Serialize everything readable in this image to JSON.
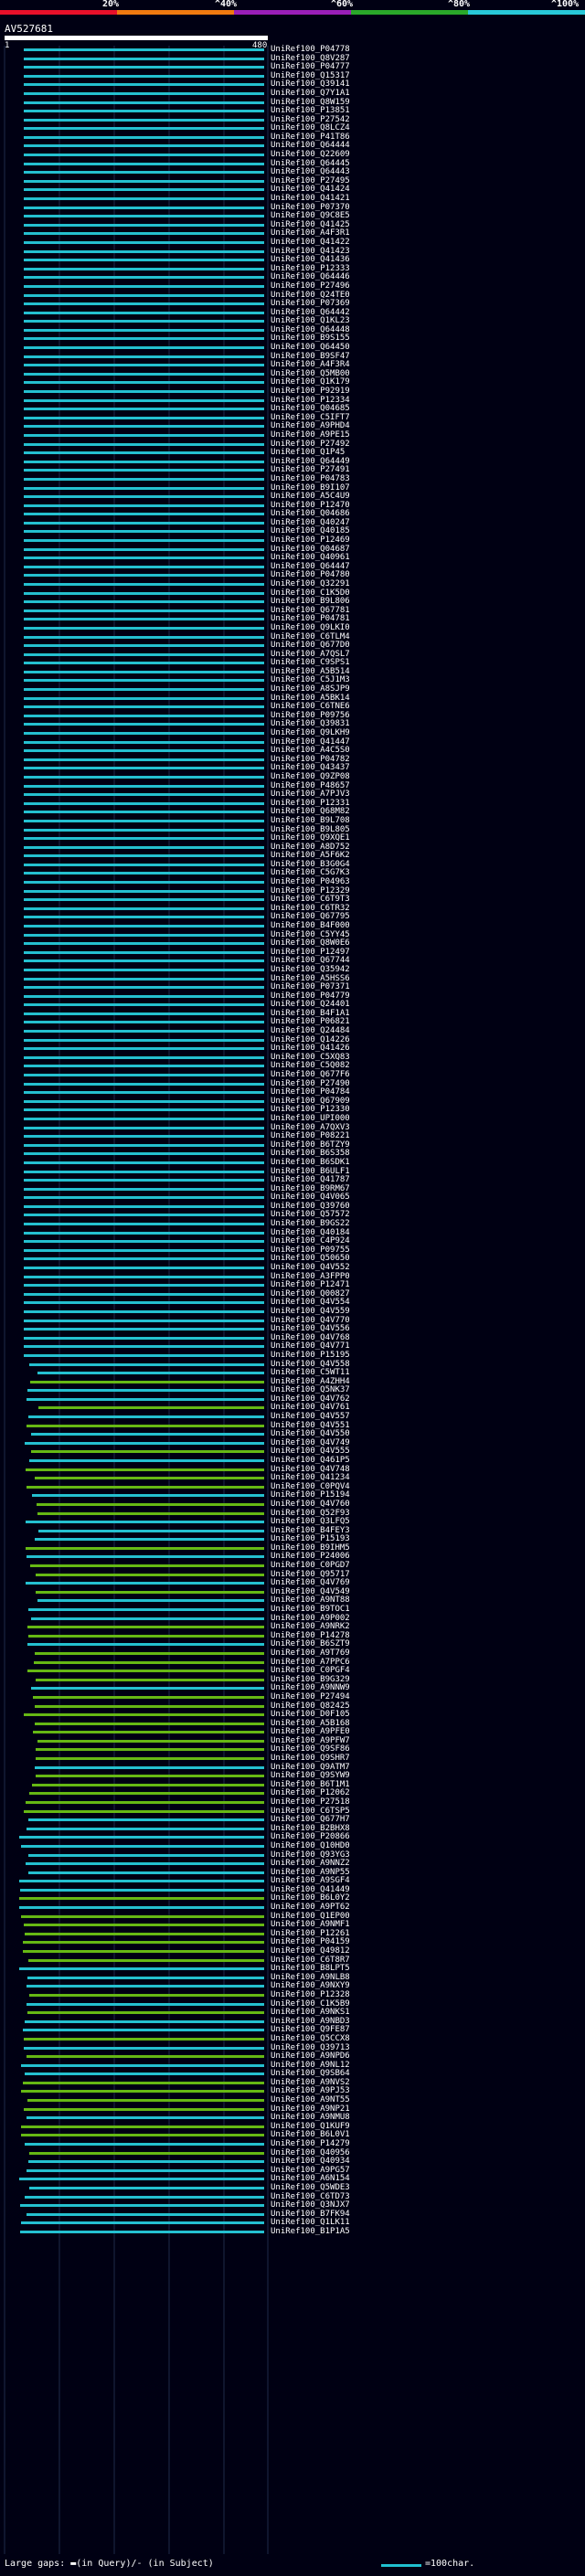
{
  "scale": {
    "labels": [
      "20%",
      "^40%",
      "^60%",
      "^80%",
      "^100%"
    ],
    "colors": [
      "#e8102a",
      "#f07a10",
      "#9a1fb8",
      "#2aa82a",
      "#28c8d8"
    ]
  },
  "query": {
    "id": "AV527681",
    "start": "1",
    "end": "480"
  },
  "colors": {
    "high": "#24c0d0",
    "mid": "#66b814",
    "low": "#1a5a10",
    "background": "#000013"
  },
  "hits": [
    "UniRef100_P04778",
    "UniRef100_Q8V287",
    "UniRef100_P04777",
    "UniRef100_Q15317",
    "UniRef100_Q39141",
    "UniRef100_Q7Y1A1",
    "UniRef100_Q8W159",
    "UniRef100_P13851",
    "UniRef100_P27542",
    "UniRef100_Q8LCZ4",
    "UniRef100_P41T86",
    "UniRef100_Q64444",
    "UniRef100_Q22609",
    "UniRef100_Q64445",
    "UniRef100_Q64443",
    "UniRef100_P27495",
    "UniRef100_Q41424",
    "UniRef100_Q41421",
    "UniRef100_P07370",
    "UniRef100_Q9C8E5",
    "UniRef100_Q41425",
    "UniRef100_A4F3R1",
    "UniRef100_Q41422",
    "UniRef100_Q41423",
    "UniRef100_Q41436",
    "UniRef100_P12333",
    "UniRef100_Q64446",
    "UniRef100_P27496",
    "UniRef100_Q24TE0",
    "UniRef100_P07369",
    "UniRef100_Q64442",
    "UniRef100_Q1KL23",
    "UniRef100_Q64448",
    "UniRef100_B9S155",
    "UniRef100_Q64450",
    "UniRef100_B9SF47",
    "UniRef100_A4F3R4",
    "UniRef100_Q5MB00",
    "UniRef100_Q1K179",
    "UniRef100_P92919",
    "UniRef100_P12334",
    "UniRef100_Q04685",
    "UniRef100_C5IFT7",
    "UniRef100_A9PHD4",
    "UniRef100_A9PE15",
    "UniRef100_P27492",
    "UniRef100_Q1P45",
    "UniRef100_Q64449",
    "UniRef100_P27491",
    "UniRef100_P04783",
    "UniRef100_B9I107",
    "UniRef100_A5C4U9",
    "UniRef100_P12470",
    "UniRef100_Q04686",
    "UniRef100_Q40247",
    "UniRef100_Q40185",
    "UniRef100_P12469",
    "UniRef100_Q04687",
    "UniRef100_Q40961",
    "UniRef100_Q64447",
    "UniRef100_P04780",
    "UniRef100_Q32291",
    "UniRef100_C1K5D0",
    "UniRef100_B9L806",
    "UniRef100_Q67781",
    "UniRef100_P04781",
    "UniRef100_Q9LKI0",
    "UniRef100_C6TLM4",
    "UniRef100_Q677D0",
    "UniRef100_A7QSL7",
    "UniRef100_C9SPS1",
    "UniRef100_A5B514",
    "UniRef100_C5J1M3",
    "UniRef100_A8SJP9",
    "UniRef100_A5BK14",
    "UniRef100_C6TNE6",
    "UniRef100_P09756",
    "UniRef100_Q39831",
    "UniRef100_Q9LKH9",
    "UniRef100_Q41447",
    "UniRef100_A4C5S0",
    "UniRef100_P04782",
    "UniRef100_Q43437",
    "UniRef100_Q9ZP08",
    "UniRef100_P48657",
    "UniRef100_A7PJV3",
    "UniRef100_P12331",
    "UniRef100_Q68M82",
    "UniRef100_B9L708",
    "UniRef100_B9L805",
    "UniRef100_Q9XQE1",
    "UniRef100_A8D752",
    "UniRef100_A5F6K2",
    "UniRef100_B3G0G4",
    "UniRef100_C5G7K3",
    "UniRef100_P04963",
    "UniRef100_P12329",
    "UniRef100_C6T9T3",
    "UniRef100_C6TR32",
    "UniRef100_Q67795",
    "UniRef100_B4F000",
    "UniRef100_C5YY45",
    "UniRef100_Q8W0E6",
    "UniRef100_P12497",
    "UniRef100_Q67744",
    "UniRef100_Q35942",
    "UniRef100_A5HSS6",
    "UniRef100_P07371",
    "UniRef100_P04779",
    "UniRef100_Q24401",
    "UniRef100_B4F1A1",
    "UniRef100_P06821",
    "UniRef100_Q24484",
    "UniRef100_Q14226",
    "UniRef100_Q41426",
    "UniRef100_C5XQ83",
    "UniRef100_C5Q082",
    "UniRef100_Q677F6",
    "UniRef100_P27490",
    "UniRef100_P04784",
    "UniRef100_Q67909",
    "UniRef100_P12330",
    "UniRef100_UPI000",
    "UniRef100_A7QXV3",
    "UniRef100_P08221",
    "UniRef100_B6TZY9",
    "UniRef100_B6S358",
    "UniRef100_B6SDK1",
    "UniRef100_B6ULF1",
    "UniRef100_Q41787",
    "UniRef100_B9RM67",
    "UniRef100_Q4V065",
    "UniRef100_Q39760",
    "UniRef100_Q57572",
    "UniRef100_B9GS22",
    "UniRef100_Q40184",
    "UniRef100_C4P924",
    "UniRef100_P09755",
    "UniRef100_Q50650",
    "UniRef100_Q4V552",
    "UniRef100_A3FPP0",
    "UniRef100_P12471",
    "UniRef100_Q00827",
    "UniRef100_Q4V554",
    "UniRef100_Q4V559",
    "UniRef100_Q4V770",
    "UniRef100_Q4V556",
    "UniRef100_Q4V768",
    "UniRef100_Q4V771",
    "UniRef100_P15195",
    "UniRef100_Q4V558",
    "UniRef100_C5WT11",
    "UniRef100_A4ZHH4",
    "UniRef100_Q5NK37",
    "UniRef100_Q4V762",
    "UniRef100_Q4V761",
    "UniRef100_Q4V557",
    "UniRef100_Q4V551",
    "UniRef100_Q4V550",
    "UniRef100_Q4V749",
    "UniRef100_Q4V555",
    "UniRef100_Q461P5",
    "UniRef100_Q4V748",
    "UniRef100_Q41234",
    "UniRef100_C0PQV4",
    "UniRef100_P15194",
    "UniRef100_Q4V760",
    "UniRef100_Q52F93",
    "UniRef100_Q3LFQ5",
    "UniRef100_B4FEY3",
    "UniRef100_P15193",
    "UniRef100_B9IHM5",
    "UniRef100_P24006",
    "UniRef100_C0PGD7",
    "UniRef100_Q95717",
    "UniRef100_Q4V769",
    "UniRef100_Q4V549",
    "UniRef100_A9NT88",
    "UniRef100_B9TOC1",
    "UniRef100_A9P002",
    "UniRef100_A9NRK2",
    "UniRef100_P14278",
    "UniRef100_B6SZT9",
    "UniRef100_A9T769",
    "UniRef100_A7PPC6",
    "UniRef100_C0PGF4",
    "UniRef100_B9G329",
    "UniRef100_A9NNW9",
    "UniRef100_P27494",
    "UniRef100_Q82425",
    "UniRef100_D0F105",
    "UniRef100_A5B168",
    "UniRef100_A9PFE0",
    "UniRef100_A9PFW7",
    "UniRef100_Q9SF86",
    "UniRef100_Q9SHR7",
    "UniRef100_Q9ATM7",
    "UniRef100_Q9SYW9",
    "UniRef100_B6T1M1",
    "UniRef100_P12062",
    "UniRef100_P27518",
    "UniRef100_C6TSP5",
    "UniRef100_Q677H7",
    "UniRef100_B2BHX8",
    "UniRef100_P20866",
    "UniRef100_Q10HD0",
    "UniRef100_Q93YG3",
    "UniRef100_A9NNZ2",
    "UniRef100_A9NP55",
    "UniRef100_A9SGF4",
    "UniRef100_Q41449",
    "UniRef100_B6L0Y2",
    "UniRef100_A9PT62",
    "UniRef100_Q1EP00",
    "UniRef100_A9NMF1",
    "UniRef100_P12261",
    "UniRef100_P04159",
    "UniRef100_Q49812",
    "UniRef100_C6T8R7",
    "UniRef100_B8LPT5",
    "UniRef100_A9NLB8",
    "UniRef100_A9NXY9",
    "UniRef100_P12328",
    "UniRef100_C1K5B9",
    "UniRef100_A9NKS1",
    "UniRef100_A9NBD3",
    "UniRef100_Q9FE87",
    "UniRef100_Q5CCX8",
    "UniRef100_Q39713",
    "UniRef100_A9NPD6",
    "UniRef100_A9NL12",
    "UniRef100_Q9SB64",
    "UniRef100_A9NVS2",
    "UniRef100_A9PJ53",
    "UniRef100_A9NT55",
    "UniRef100_A9NP21",
    "UniRef100_A9NMU8",
    "UniRef100_Q1KUF9",
    "UniRef100_B6L0V1",
    "UniRef100_P14279",
    "UniRef100_Q40956",
    "UniRef100_Q40934",
    "UniRef100_A9PG57",
    "UniRef100_A6N154",
    "UniRef100_Q5WDE3",
    "UniRef100_C6TD73",
    "UniRef100_Q3NJX7",
    "UniRef100_B7FK94",
    "UniRef100_Q1LK11",
    "UniRef100_B1P1A5"
  ],
  "legend": {
    "text": "Large gaps: ▬(in Query)/- (in Subject)",
    "scale_text": "=100char."
  }
}
